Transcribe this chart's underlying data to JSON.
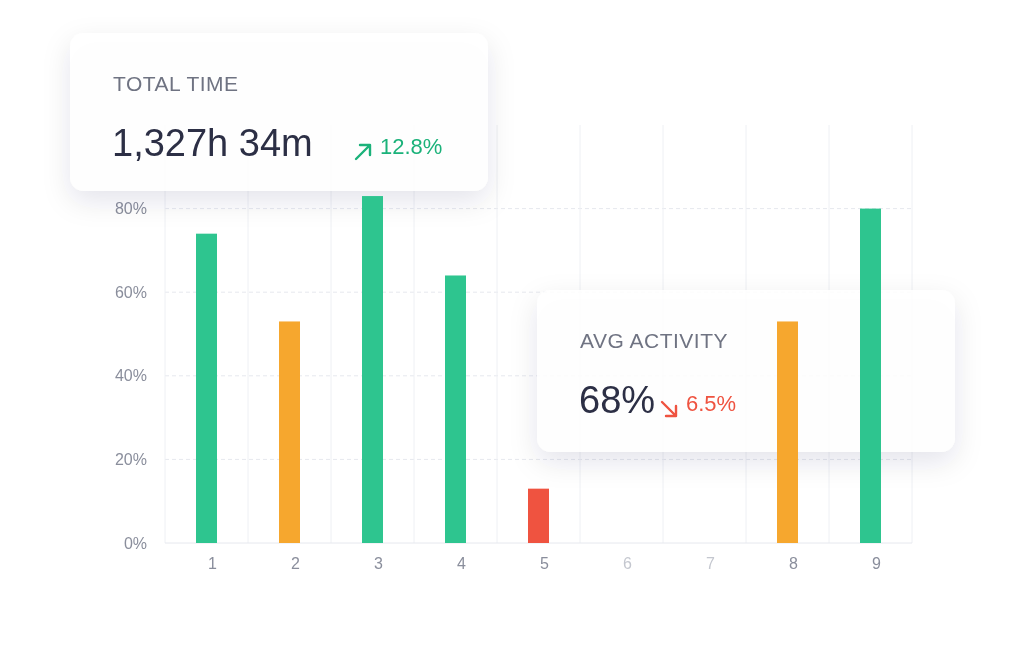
{
  "chart_data": {
    "type": "bar",
    "categories": [
      "1",
      "2",
      "3",
      "4",
      "5",
      "6",
      "7",
      "8",
      "9"
    ],
    "values": [
      74,
      53,
      83,
      64,
      13,
      null,
      null,
      53,
      80
    ],
    "colors": [
      "#2ec58f",
      "#f6a72e",
      "#2ec58f",
      "#2ec58f",
      "#ef5340",
      null,
      null,
      "#f6a72e",
      "#2ec58f"
    ],
    "ylim": [
      0,
      100
    ],
    "yticks": [
      {
        "value": 0,
        "label": "0%"
      },
      {
        "value": 20,
        "label": "20%"
      },
      {
        "value": 40,
        "label": "40%"
      },
      {
        "value": 60,
        "label": "60%"
      },
      {
        "value": 80,
        "label": "80%"
      }
    ],
    "grid": "y",
    "annotations": [
      "TOTAL TIME",
      "1,327h 34m",
      "12.8%",
      "AVG ACTIVITY",
      "68%",
      "6.5%"
    ]
  }
}
